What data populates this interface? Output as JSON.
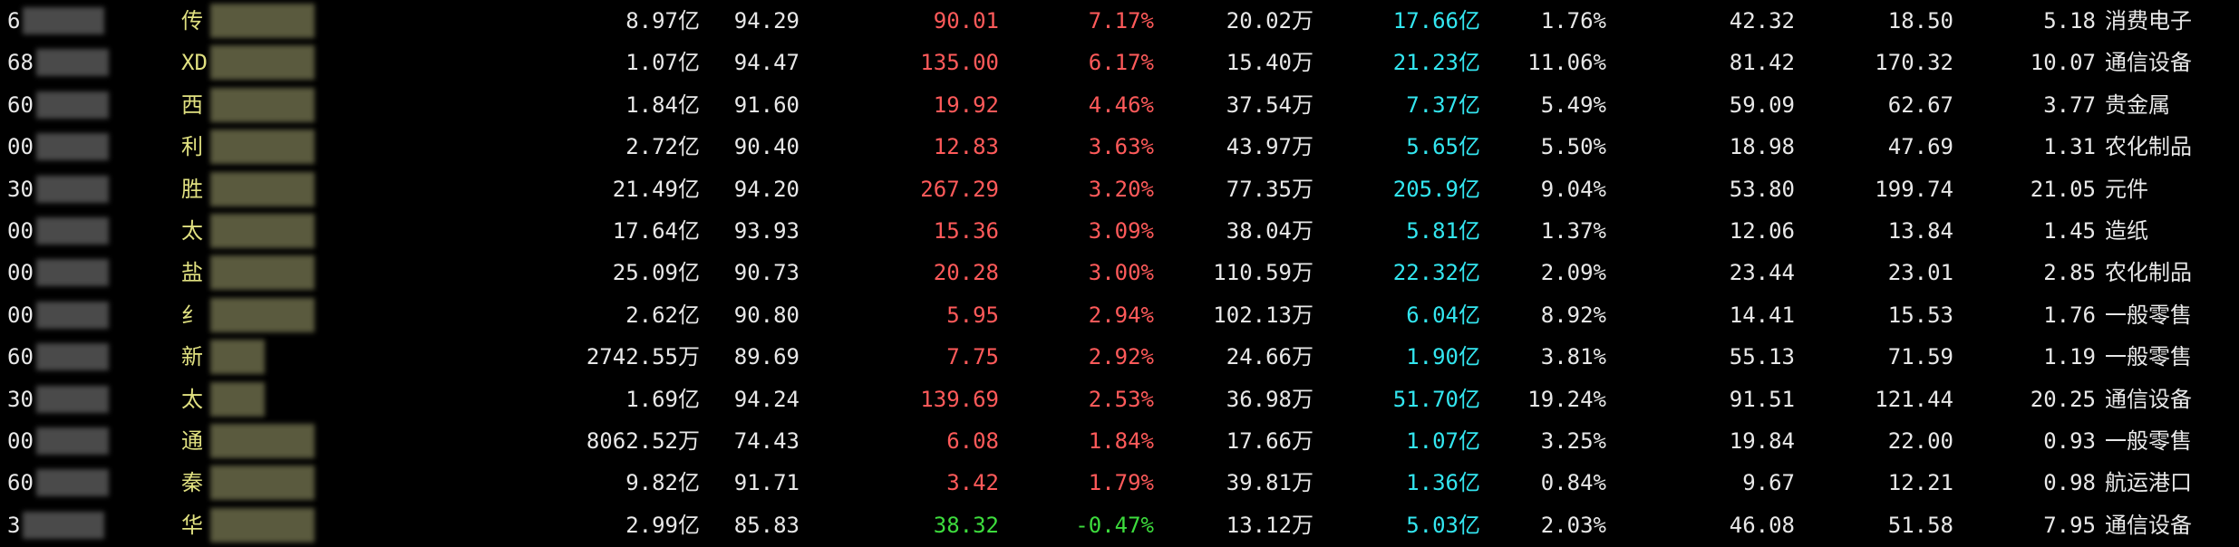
{
  "table": {
    "rows": [
      [
        "6",
        "传",
        "8.97亿",
        "94.29",
        "90.01",
        "7.17%",
        "20.02万",
        "17.66亿",
        "1.76%",
        "42.32",
        "18.50",
        "5.18",
        "消费电子"
      ],
      [
        "68",
        "XD",
        "1.07亿",
        "94.47",
        "135.00",
        "6.17%",
        "15.40万",
        "21.23亿",
        "11.06%",
        "81.42",
        "170.32",
        "10.07",
        "通信设备"
      ],
      [
        "60",
        "西",
        "1.84亿",
        "91.60",
        "19.92",
        "4.46%",
        "37.54万",
        "7.37亿",
        "5.49%",
        "59.09",
        "62.67",
        "3.77",
        "贵金属"
      ],
      [
        "00",
        "利",
        "2.72亿",
        "90.40",
        "12.83",
        "3.63%",
        "43.97万",
        "5.65亿",
        "5.50%",
        "18.98",
        "47.69",
        "1.31",
        "农化制品"
      ],
      [
        "30",
        "胜",
        "21.49亿",
        "94.20",
        "267.29",
        "3.20%",
        "77.35万",
        "205.9亿",
        "9.04%",
        "53.80",
        "199.74",
        "21.05",
        "元件"
      ],
      [
        "00",
        "太",
        "17.64亿",
        "93.93",
        "15.36",
        "3.09%",
        "38.04万",
        "5.81亿",
        "1.37%",
        "12.06",
        "13.84",
        "1.45",
        "造纸"
      ],
      [
        "00",
        "盐",
        "25.09亿",
        "90.73",
        "20.28",
        "3.00%",
        "110.59万",
        "22.32亿",
        "2.09%",
        "23.44",
        "23.01",
        "2.85",
        "农化制品"
      ],
      [
        "00",
        "纟",
        "2.62亿",
        "90.80",
        "5.95",
        "2.94%",
        "102.13万",
        "6.04亿",
        "8.92%",
        "14.41",
        "15.53",
        "1.76",
        "一般零售"
      ],
      [
        "60",
        "新",
        "2742.55万",
        "89.69",
        "7.75",
        "2.92%",
        "24.66万",
        "1.90亿",
        "3.81%",
        "55.13",
        "71.59",
        "1.19",
        "一般零售"
      ],
      [
        "30",
        "太",
        "1.69亿",
        "94.24",
        "139.69",
        "2.53%",
        "36.98万",
        "51.70亿",
        "19.24%",
        "91.51",
        "121.44",
        "20.25",
        "通信设备"
      ],
      [
        "00",
        "通",
        "8062.52万",
        "74.43",
        "6.08",
        "1.84%",
        "17.66万",
        "1.07亿",
        "3.25%",
        "19.84",
        "22.00",
        "0.93",
        "一般零售"
      ],
      [
        "60",
        "秦",
        "9.82亿",
        "91.71",
        "3.42",
        "1.79%",
        "39.81万",
        "1.36亿",
        "0.84%",
        "9.67",
        "12.21",
        "0.98",
        "航运港口"
      ],
      [
        "3",
        "华",
        "2.99亿",
        "85.83",
        "38.32",
        "-0.47%",
        "13.12万",
        "5.03亿",
        "2.03%",
        "46.08",
        "51.58",
        "7.95",
        "通信设备"
      ]
    ]
  }
}
